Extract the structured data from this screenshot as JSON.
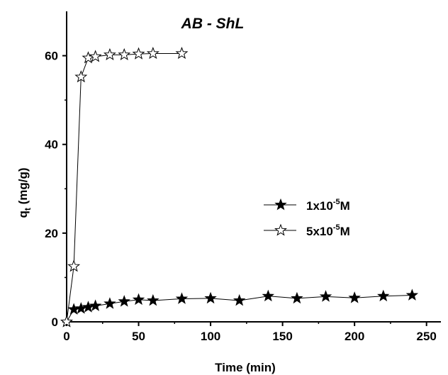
{
  "chart_data": {
    "type": "scatter",
    "title": "AB - ShL",
    "xlabel": "Time (min)",
    "ylabel": {
      "main": "q",
      "sub": "t",
      "unit": " (mg/g)"
    },
    "xlim": [
      0,
      260
    ],
    "ylim": [
      0,
      70
    ],
    "xticks": [
      0,
      50,
      100,
      150,
      200,
      250
    ],
    "yticks": [
      0,
      20,
      40,
      60
    ],
    "legend_position": "center-right",
    "series": [
      {
        "name": {
          "pre": "1x10",
          "sup": "-5",
          "post": "M"
        },
        "marker": "filled-star",
        "color": "#000000",
        "x": [
          0,
          5,
          10,
          15,
          20,
          30,
          40,
          50,
          60,
          80,
          100,
          120,
          140,
          160,
          180,
          200,
          220,
          240
        ],
        "y": [
          0,
          2.8,
          3.0,
          3.3,
          3.6,
          4.1,
          4.6,
          5.0,
          4.8,
          5.2,
          5.3,
          4.8,
          5.8,
          5.3,
          5.7,
          5.4,
          5.8,
          6.0
        ]
      },
      {
        "name": {
          "pre": "5x10",
          "sup": "-5",
          "post": "M"
        },
        "marker": "open-star",
        "color": "#000000",
        "x": [
          0,
          5,
          10,
          15,
          20,
          30,
          40,
          50,
          60,
          80
        ],
        "y": [
          0,
          12.5,
          55.2,
          59.5,
          59.8,
          60.2,
          60.2,
          60.4,
          60.5,
          60.5
        ]
      }
    ]
  }
}
